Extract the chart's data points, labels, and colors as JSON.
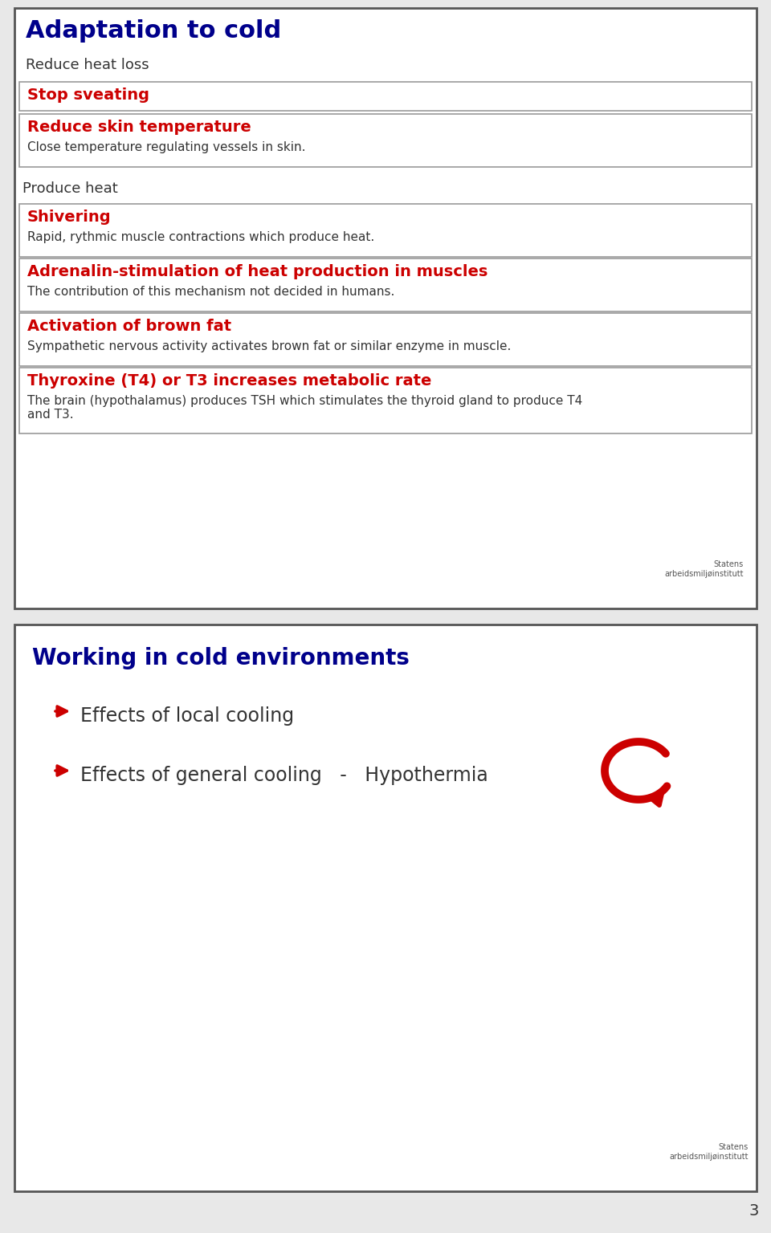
{
  "slide1": {
    "title": "Adaptation to cold",
    "title_color": "#00008B",
    "subtitle": "Reduce heat loss",
    "subtitle_color": "#333333",
    "boxes": [
      {
        "heading": "Stop sveating",
        "heading_color": "#CC0000",
        "body": "",
        "body_color": "#333333"
      },
      {
        "heading": "Reduce skin temperature",
        "heading_color": "#CC0000",
        "body": "Close temperature regulating vessels in skin.",
        "body_color": "#333333"
      }
    ],
    "produce_heat_label": "Produce heat",
    "produce_heat_color": "#333333",
    "boxes2": [
      {
        "heading": "Shivering",
        "heading_color": "#CC0000",
        "body": "Rapid, rythmic muscle contractions which produce heat.",
        "body_color": "#333333"
      },
      {
        "heading": "Adrenalin-stimulation of heat production in muscles",
        "heading_color": "#CC0000",
        "body": "The contribution of this mechanism not decided in humans.",
        "body_color": "#333333"
      },
      {
        "heading": "Activation of brown fat",
        "heading_color": "#CC0000",
        "body": "Sympathetic nervous activity activates brown fat or similar enzyme in muscle.",
        "body_color": "#333333"
      },
      {
        "heading": "Thyroxine (T4) or T3 increases metabolic rate",
        "heading_color": "#CC0000",
        "body": "The brain (hypothalamus) produces TSH which stimulates the thyroid gland to produce T4\nand T3.",
        "body_color": "#333333"
      }
    ]
  },
  "slide2": {
    "title": "Working in cold environments",
    "title_color": "#00008B",
    "items": [
      "Effects of local cooling",
      "Effects of general cooling   -   Hypothermia"
    ],
    "item_color": "#333333",
    "arrow_color": "#CC0000"
  },
  "page_number": "3",
  "background_color": "#e8e8e8",
  "slide_bg": "#ffffff",
  "border_color": "#888888"
}
